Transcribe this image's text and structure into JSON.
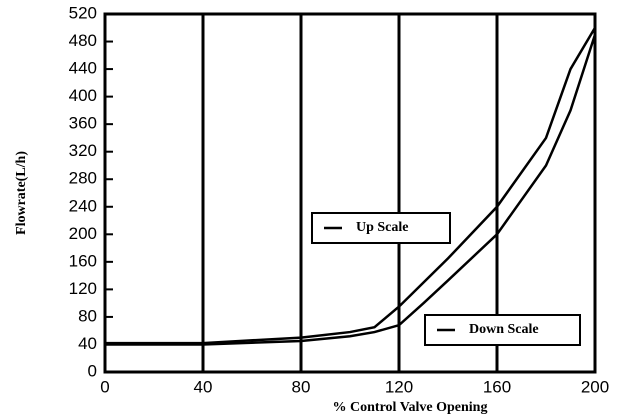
{
  "chart_data": {
    "type": "line",
    "xlabel": "% Control Valve Opening",
    "ylabel": "Flowrate(L/h)",
    "x": [
      0,
      40,
      80,
      100,
      110,
      120,
      130,
      140,
      160,
      180,
      190,
      200
    ],
    "series": [
      {
        "name": "Up Scale",
        "color": "#000000",
        "values": [
          42,
          42,
          50,
          58,
          65,
          95,
          130,
          165,
          240,
          340,
          440,
          500
        ]
      },
      {
        "name": "Down Scale",
        "color": "#000000",
        "values": [
          40,
          40,
          45,
          52,
          58,
          68,
          100,
          133,
          200,
          300,
          380,
          490
        ]
      }
    ],
    "xlim": [
      0,
      200
    ],
    "xticks": [
      0,
      40,
      80,
      120,
      160,
      200
    ],
    "ylim": [
      0,
      520
    ],
    "yticks": [
      0,
      40,
      80,
      120,
      160,
      200,
      240,
      280,
      320,
      360,
      400,
      440,
      480,
      520
    ],
    "grid": true
  }
}
